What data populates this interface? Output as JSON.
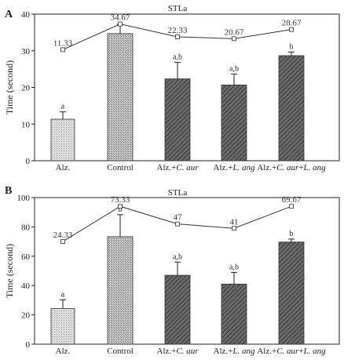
{
  "figure": {
    "title": ""
  },
  "colors": {
    "light": "#c8c8c8",
    "control": "#a9a9a9",
    "dark": "#5a5a5a",
    "axis": "#222222"
  },
  "chart_data": [
    {
      "panel": "A",
      "type": "bar",
      "title": "STLa",
      "ylabel": "Time (second)",
      "xlabel": "",
      "ylim": [
        0,
        40
      ],
      "yticks": [
        0,
        10,
        20,
        30,
        40
      ],
      "grid": false,
      "categories": [
        {
          "prefix": "Alz.",
          "italic": "",
          "suffix": "",
          "mid": "",
          "italic2": ""
        },
        {
          "prefix": "Control",
          "italic": "",
          "suffix": "",
          "mid": "",
          "italic2": ""
        },
        {
          "prefix": "Alz.+",
          "italic": "C. aur",
          "suffix": "",
          "mid": "",
          "italic2": ""
        },
        {
          "prefix": "Alz.+",
          "italic": "L. ang",
          "suffix": "",
          "mid": "",
          "italic2": ""
        },
        {
          "prefix": "Alz.+",
          "italic": "C. aur",
          "mid": "+",
          "italic2": "L. ang",
          "suffix": ""
        }
      ],
      "values": [
        11.33,
        34.67,
        22.33,
        20.67,
        28.67
      ],
      "errors": [
        2,
        2.5,
        4.5,
        3,
        1
      ],
      "significance": [
        "a",
        "",
        "a,b",
        "a,b",
        "b"
      ],
      "mean_labels": [
        "11.33",
        "34.67",
        "22.33",
        "20.67",
        "28.67"
      ],
      "line_values": [
        30.3,
        37.3,
        33.8,
        33.3,
        35.8
      ],
      "fills": [
        "light",
        "control",
        "dark",
        "dark",
        "dark"
      ]
    },
    {
      "panel": "B",
      "type": "bar",
      "title": "STLa",
      "ylabel": "Time (second)",
      "xlabel": "",
      "ylim": [
        0,
        100
      ],
      "yticks": [
        0,
        20,
        40,
        60,
        80,
        100
      ],
      "grid": false,
      "categories": [
        {
          "prefix": "Alz.",
          "italic": "",
          "suffix": "",
          "mid": "",
          "italic2": ""
        },
        {
          "prefix": "Control",
          "italic": "",
          "suffix": "",
          "mid": "",
          "italic2": ""
        },
        {
          "prefix": "Alz.+",
          "italic": "C. aur",
          "suffix": "",
          "mid": "",
          "italic2": ""
        },
        {
          "prefix": "Alz.+",
          "italic": "L. ang",
          "suffix": "",
          "mid": "",
          "italic2": ""
        },
        {
          "prefix": "Alz.+",
          "italic": "C. aur",
          "mid": "+",
          "italic2": "L. ang",
          "suffix": ""
        }
      ],
      "values": [
        24.33,
        73.33,
        47,
        41,
        69.67
      ],
      "errors": [
        6,
        15,
        9,
        8,
        2
      ],
      "significance": [
        "a",
        "b",
        "a,b",
        "a,b",
        "b"
      ],
      "mean_labels": [
        "24.33",
        "73.33",
        "47",
        "41",
        "69.67"
      ],
      "line_values": [
        70,
        94,
        82,
        79,
        94
      ],
      "fills": [
        "light",
        "control",
        "dark",
        "dark",
        "dark"
      ]
    }
  ]
}
